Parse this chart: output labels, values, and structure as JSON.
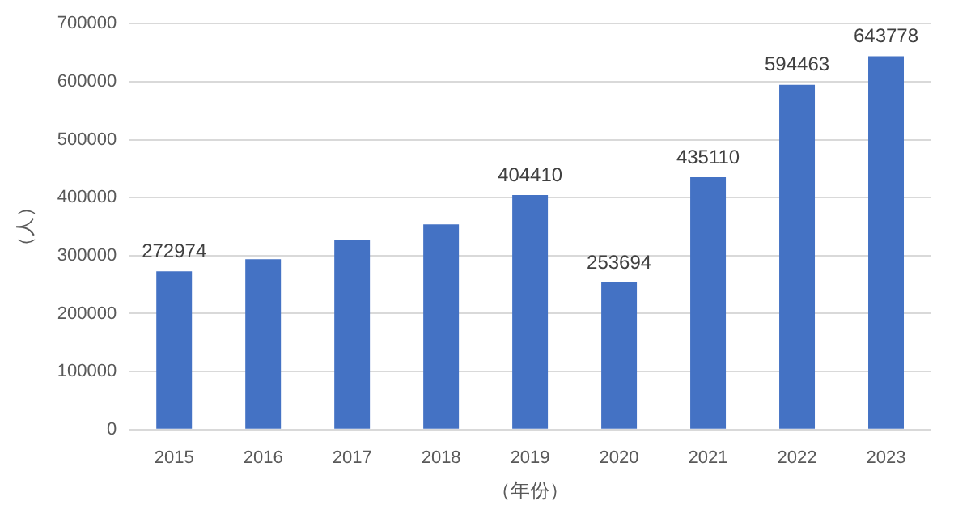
{
  "chart_data": {
    "type": "bar",
    "xlabel": "（年份）",
    "ylabel": "（人）",
    "categories": [
      "2015",
      "2016",
      "2017",
      "2018",
      "2019",
      "2020",
      "2021",
      "2022",
      "2023"
    ],
    "values": [
      272974,
      294000,
      327000,
      354000,
      404410,
      253694,
      435110,
      594463,
      643778
    ],
    "value_labels": [
      "272974",
      null,
      null,
      null,
      "404410",
      "253694",
      "435110",
      "594463",
      "643778"
    ],
    "color": "#4472c4",
    "ylim": [
      0,
      700000
    ],
    "yticks": [
      0,
      100000,
      200000,
      300000,
      400000,
      500000,
      600000,
      700000
    ],
    "grid": "y",
    "legend": false
  }
}
